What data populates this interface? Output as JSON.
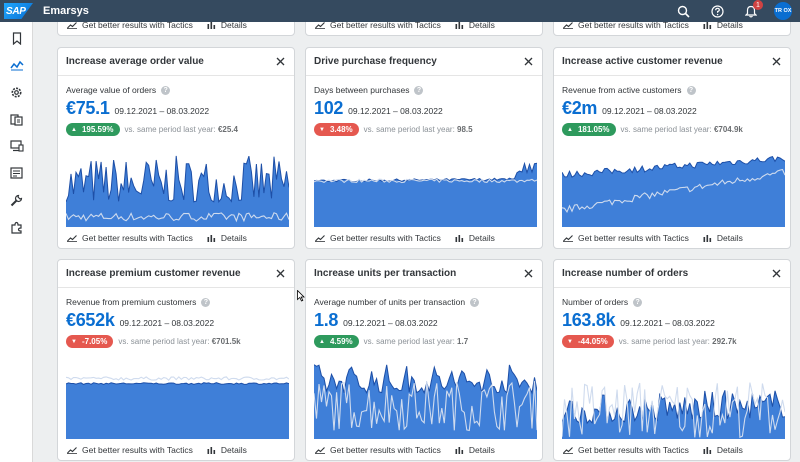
{
  "app": {
    "logo_text": "SAP",
    "title": "Emarsys",
    "notification_count": "1",
    "avatar_initials": "TR OX"
  },
  "top_partial_cards": [
    {
      "tactics_label": "Get better results with Tactics",
      "details_label": "Details"
    },
    {
      "tactics_label": "Get better results with Tactics",
      "details_label": "Details"
    },
    {
      "tactics_label": "Get better results with Tactics",
      "details_label": "Details"
    }
  ],
  "cards": [
    {
      "title": "Increase average order value",
      "metric_label": "Average value of orders",
      "value": "€75.1",
      "date_range": "09.12.2021 – 08.03.2022",
      "change": "195.59%",
      "direction": "up",
      "compare_label": "vs. same period last year:",
      "compare_value": "€25.4",
      "tactics_label": "Get better results with Tactics",
      "details_label": "Details"
    },
    {
      "title": "Drive purchase frequency",
      "metric_label": "Days between purchases",
      "value": "102",
      "date_range": "09.12.2021 – 08.03.2022",
      "change": "3.48%",
      "direction": "down",
      "compare_label": "vs. same period last year:",
      "compare_value": "98.5",
      "tactics_label": "Get better results with Tactics",
      "details_label": "Details"
    },
    {
      "title": "Increase active customer revenue",
      "metric_label": "Revenue from active customers",
      "value": "€2m",
      "date_range": "09.12.2021 – 08.03.2022",
      "change": "181.05%",
      "direction": "up",
      "compare_label": "vs. same period last year:",
      "compare_value": "€704.9k",
      "tactics_label": "Get better results with Tactics",
      "details_label": "Details"
    },
    {
      "title": "Increase premium customer revenue",
      "metric_label": "Revenue from premium customers",
      "value": "€652k",
      "date_range": "09.12.2021 – 08.03.2022",
      "change": "-7.05%",
      "direction": "down",
      "compare_label": "vs. same period last year:",
      "compare_value": "€701.5k",
      "tactics_label": "Get better results with Tactics",
      "details_label": "Details"
    },
    {
      "title": "Increase units per transaction",
      "metric_label": "Average number of units per transaction",
      "value": "1.8",
      "date_range": "09.12.2021 – 08.03.2022",
      "change": "4.59%",
      "direction": "up",
      "compare_label": "vs. same period last year:",
      "compare_value": "1.7",
      "tactics_label": "Get better results with Tactics",
      "details_label": "Details"
    },
    {
      "title": "Increase number of orders",
      "metric_label": "Number of orders",
      "value": "163.8k",
      "date_range": "09.12.2021 – 08.03.2022",
      "change": "-44.05%",
      "direction": "down",
      "compare_label": "vs. same period last year:",
      "compare_value": "292.7k",
      "tactics_label": "Get better results with Tactics",
      "details_label": "Details"
    }
  ],
  "sidebar_icons": [
    "bookmark-icon",
    "analytics-icon",
    "settings-icon",
    "catalog-icon",
    "devices-icon",
    "contacts-icon",
    "wrench-icon",
    "add-on-icon"
  ],
  "colors": {
    "shell": "#354a5f",
    "accent": "#0a6ed1",
    "area_fill": "#3f7fd8",
    "area_line": "#1d4fa7",
    "compare_line": "#cfdbee",
    "positive": "#2e9a5d",
    "negative": "#e5584f"
  }
}
